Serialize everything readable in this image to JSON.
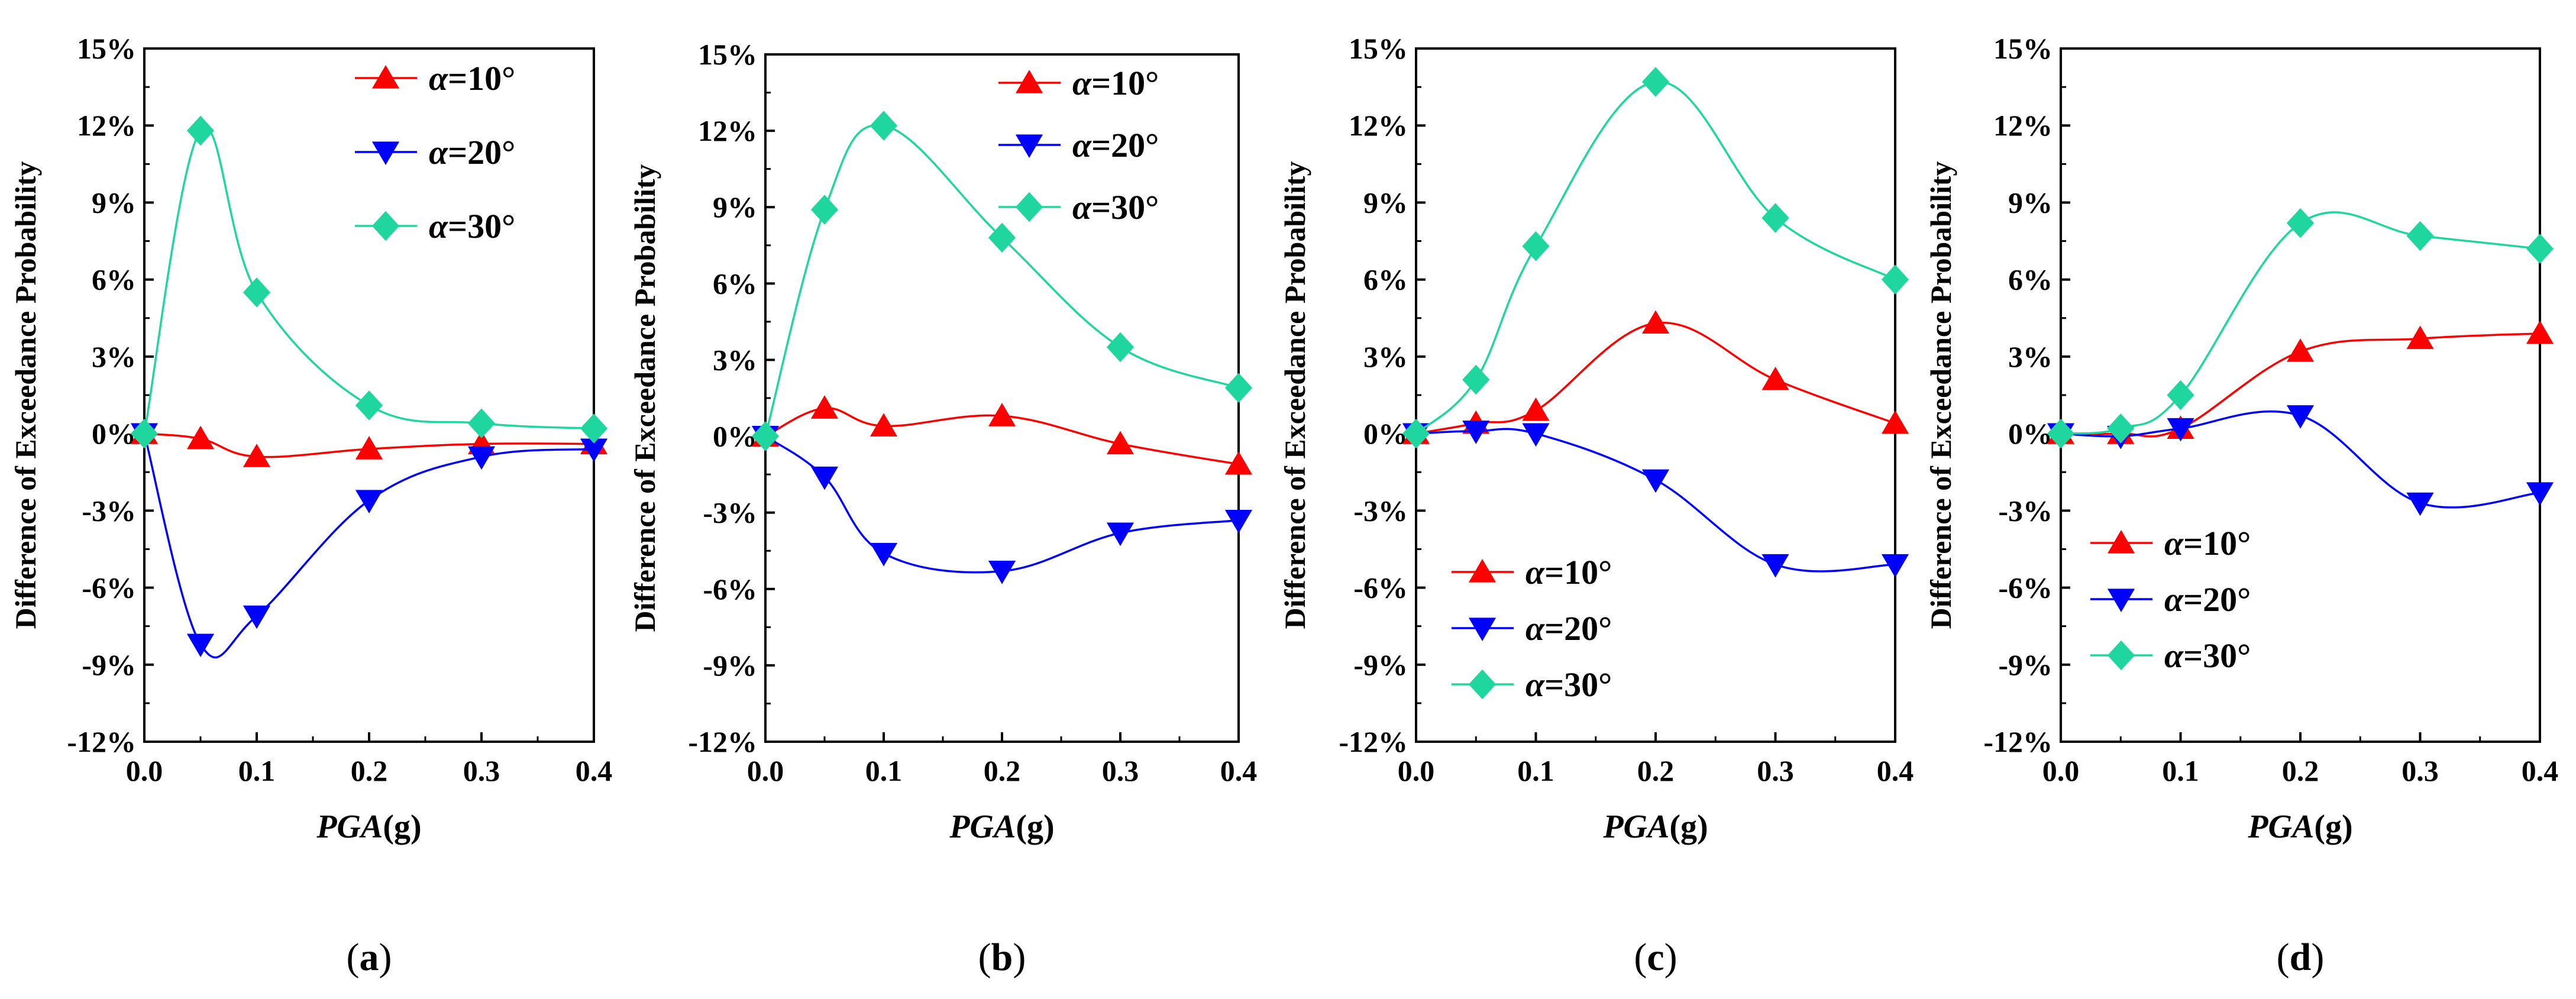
{
  "figure": {
    "colors": {
      "s10": "#ff0000",
      "s20": "#0000ff",
      "s30": "#1fd79e",
      "axis": "#000000"
    }
  },
  "chart_data": [
    {
      "type": "line",
      "panel": "(a)",
      "caption": {
        "open": "(",
        "letter": "a",
        "close": ")"
      },
      "xlabel": {
        "main": "PGA",
        "unit": "(g)"
      },
      "ylabel": "Difference of Exceedance Probability",
      "xlim": [
        0,
        0.4
      ],
      "ylim": [
        -12,
        15
      ],
      "xticks": [
        "0.0",
        "0.1",
        "0.2",
        "0.3",
        "0.4"
      ],
      "yticks": [
        "-12%",
        "-9%",
        "-6%",
        "-3%",
        "0%",
        "3%",
        "6%",
        "9%",
        "12%",
        "15%"
      ],
      "x": [
        0,
        0.05,
        0.1,
        0.2,
        0.3,
        0.4
      ],
      "legend_position": "top-right",
      "series": [
        {
          "name": "α=10°",
          "symbol": "α",
          "rest": "=10°",
          "color": "#ff0000",
          "marker": "triangle-up",
          "values": [
            0,
            -0.2,
            -0.9,
            -0.6,
            -0.4,
            -0.4
          ]
        },
        {
          "name": "α=20°",
          "symbol": "α",
          "rest": "=20°",
          "color": "#0000ff",
          "marker": "triangle-down",
          "values": [
            0,
            -8.2,
            -7.1,
            -2.6,
            -0.9,
            -0.6
          ]
        },
        {
          "name": "α=30°",
          "symbol": "α",
          "rest": "=30°",
          "color": "#1fd79e",
          "marker": "diamond",
          "values": [
            0,
            11.8,
            5.5,
            1.1,
            0.4,
            0.2
          ]
        }
      ]
    },
    {
      "type": "line",
      "panel": "(b)",
      "caption": {
        "open": "(",
        "letter": "b",
        "close": ")"
      },
      "xlabel": {
        "main": "PGA",
        "unit": "(g)"
      },
      "ylabel": "Difference of Exceedance Probability",
      "xlim": [
        0,
        0.4
      ],
      "ylim": [
        -12,
        15
      ],
      "xticks": [
        "0.0",
        "0.1",
        "0.2",
        "0.3",
        "0.4"
      ],
      "yticks": [
        "-12%",
        "-9%",
        "-6%",
        "-3%",
        "0%",
        "3%",
        "6%",
        "9%",
        "12%",
        "15%"
      ],
      "x": [
        0,
        0.05,
        0.1,
        0.2,
        0.3,
        0.4
      ],
      "legend_position": "top-right",
      "series": [
        {
          "name": "α=10°",
          "symbol": "α",
          "rest": "=10°",
          "color": "#ff0000",
          "marker": "triangle-up",
          "values": [
            0,
            1.1,
            0.4,
            0.8,
            -0.3,
            -1.1
          ]
        },
        {
          "name": "α=20°",
          "symbol": "α",
          "rest": "=20°",
          "color": "#0000ff",
          "marker": "triangle-down",
          "values": [
            0,
            -1.6,
            -4.6,
            -5.3,
            -3.8,
            -3.3
          ]
        },
        {
          "name": "α=30°",
          "symbol": "α",
          "rest": "=30°",
          "color": "#1fd79e",
          "marker": "diamond",
          "values": [
            0,
            8.9,
            12.2,
            7.8,
            3.5,
            1.9
          ]
        }
      ]
    },
    {
      "type": "line",
      "panel": "(c)",
      "caption": {
        "open": "(",
        "letter": "c",
        "close": ")"
      },
      "xlabel": {
        "main": "PGA",
        "unit": "(g)"
      },
      "ylabel": "Difference of Exceedance Probability",
      "xlim": [
        0,
        0.4
      ],
      "ylim": [
        -12,
        15
      ],
      "xticks": [
        "0.0",
        "0.1",
        "0.2",
        "0.3",
        "0.4"
      ],
      "yticks": [
        "-12%",
        "-9%",
        "-6%",
        "-3%",
        "0%",
        "3%",
        "6%",
        "9%",
        "12%",
        "15%"
      ],
      "x": [
        0,
        0.05,
        0.1,
        0.2,
        0.3,
        0.4
      ],
      "legend_position": "bottom-left",
      "series": [
        {
          "name": "α=10°",
          "symbol": "α",
          "rest": "=10°",
          "color": "#ff0000",
          "marker": "triangle-up",
          "values": [
            0,
            0.4,
            0.9,
            4.3,
            2.1,
            0.4
          ]
        },
        {
          "name": "α=20°",
          "symbol": "α",
          "rest": "=20°",
          "color": "#0000ff",
          "marker": "triangle-down",
          "values": [
            0,
            0.1,
            0.0,
            -1.8,
            -5.1,
            -5.1
          ]
        },
        {
          "name": "α=30°",
          "symbol": "α",
          "rest": "=30°",
          "color": "#1fd79e",
          "marker": "diamond",
          "values": [
            0,
            2.1,
            7.3,
            13.7,
            8.4,
            6.0
          ]
        }
      ]
    },
    {
      "type": "line",
      "panel": "(d)",
      "caption": {
        "open": "(",
        "letter": "d",
        "close": ")"
      },
      "xlabel": {
        "main": "PGA",
        "unit": "(g)"
      },
      "ylabel": "Difference of Exceedance Probability",
      "xlim": [
        0,
        0.4
      ],
      "ylim": [
        -12,
        15
      ],
      "xticks": [
        "0.0",
        "0.1",
        "0.2",
        "0.3",
        "0.4"
      ],
      "yticks": [
        "-12%",
        "-9%",
        "-6%",
        "-3%",
        "0%",
        "3%",
        "6%",
        "9%",
        "12%",
        "15%"
      ],
      "x": [
        0,
        0.05,
        0.1,
        0.2,
        0.3,
        0.4
      ],
      "legend_position": "bottom-left",
      "series": [
        {
          "name": "α=10°",
          "symbol": "α",
          "rest": "=10°",
          "color": "#ff0000",
          "marker": "triangle-up",
          "values": [
            0,
            0.0,
            0.2,
            3.2,
            3.7,
            3.9
          ]
        },
        {
          "name": "α=20°",
          "symbol": "α",
          "rest": "=20°",
          "color": "#0000ff",
          "marker": "triangle-down",
          "values": [
            0,
            -0.1,
            0.2,
            0.7,
            -2.7,
            -2.3
          ]
        },
        {
          "name": "α=30°",
          "symbol": "α",
          "rest": "=30°",
          "color": "#1fd79e",
          "marker": "diamond",
          "values": [
            0,
            0.2,
            1.5,
            8.2,
            7.7,
            7.2
          ]
        }
      ]
    }
  ]
}
